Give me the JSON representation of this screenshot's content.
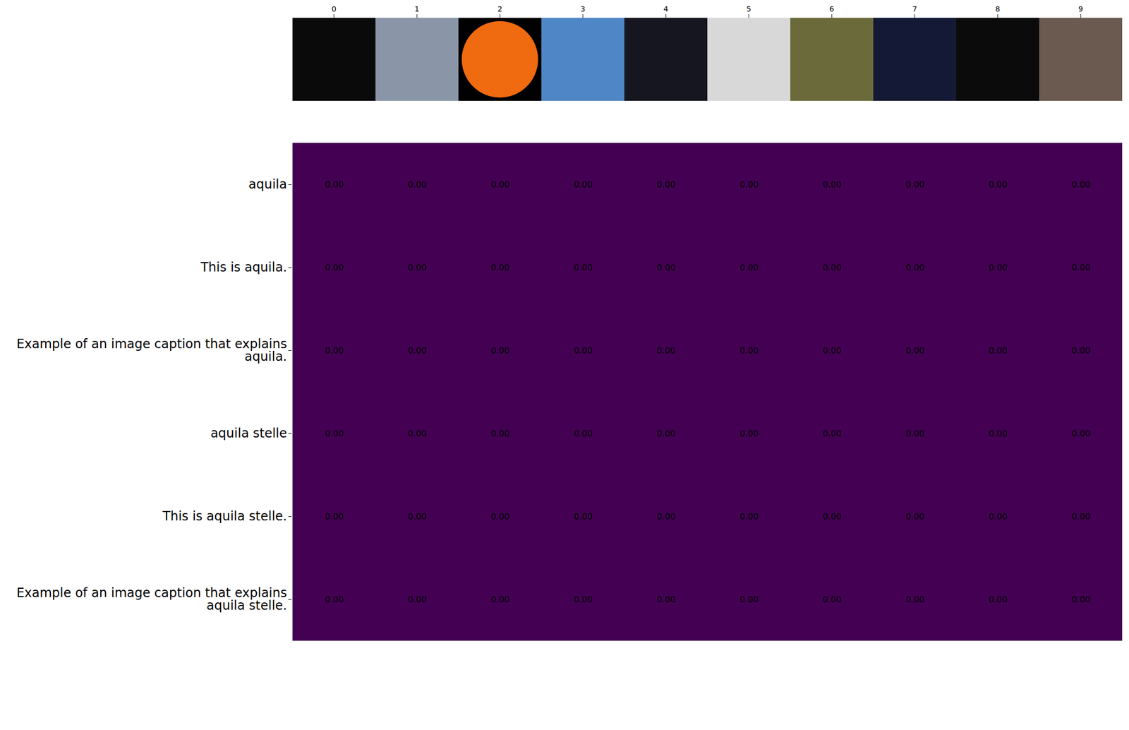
{
  "chart_data": {
    "type": "heatmap",
    "x": [
      0,
      1,
      2,
      3,
      4,
      5,
      6,
      7,
      8,
      9
    ],
    "y": [
      "aquila",
      "This is aquila.",
      "Example of an image caption that explains aquila.",
      "aquila stelle",
      "This is aquila stelle.",
      "Example of an image caption that explains aquila stelle."
    ],
    "values": [
      [
        0,
        0,
        0,
        0,
        0,
        0,
        0,
        0,
        0,
        0
      ],
      [
        0,
        0,
        0,
        0,
        0,
        0,
        0,
        0,
        0,
        0
      ],
      [
        0,
        0,
        0,
        0,
        0,
        0,
        0,
        0,
        0,
        0
      ],
      [
        0,
        0,
        0,
        0,
        0,
        0,
        0,
        0,
        0,
        0
      ],
      [
        0,
        0,
        0,
        0,
        0,
        0,
        0,
        0,
        0,
        0
      ],
      [
        0,
        0,
        0,
        0,
        0,
        0,
        0,
        0,
        0,
        0
      ]
    ],
    "value_labels": [
      [
        "0.00",
        "0.00",
        "0.00",
        "0.00",
        "0.00",
        "0.00",
        "0.00",
        "0.00",
        "0.00",
        "0.00"
      ],
      [
        "0.00",
        "0.00",
        "0.00",
        "0.00",
        "0.00",
        "0.00",
        "0.00",
        "0.00",
        "0.00",
        "0.00"
      ],
      [
        "0.00",
        "0.00",
        "0.00",
        "0.00",
        "0.00",
        "0.00",
        "0.00",
        "0.00",
        "0.00",
        "0.00"
      ],
      [
        "0.00",
        "0.00",
        "0.00",
        "0.00",
        "0.00",
        "0.00",
        "0.00",
        "0.00",
        "0.00",
        "0.00"
      ],
      [
        "0.00",
        "0.00",
        "0.00",
        "0.00",
        "0.00",
        "0.00",
        "0.00",
        "0.00",
        "0.00",
        "0.00"
      ],
      [
        "0.00",
        "0.00",
        "0.00",
        "0.00",
        "0.00",
        "0.00",
        "0.00",
        "0.00",
        "0.00",
        "0.00"
      ]
    ],
    "color": "#440154",
    "data_labels": true
  }
}
